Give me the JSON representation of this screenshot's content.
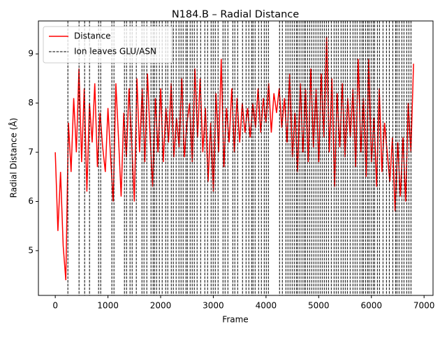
{
  "chart_data": {
    "type": "line",
    "title": "N184.B – Radial Distance",
    "x_label": "Frame",
    "y_label": "Radial Distance (Å)",
    "x": [
      0,
      50,
      100,
      150,
      200,
      250,
      300,
      350,
      400,
      450,
      500,
      550,
      600,
      650,
      700,
      750,
      800,
      850,
      900,
      950,
      1000,
      1050,
      1100,
      1150,
      1200,
      1250,
      1300,
      1350,
      1400,
      1450,
      1500,
      1550,
      1600,
      1650,
      1700,
      1750,
      1800,
      1850,
      1900,
      1950,
      2000,
      2050,
      2100,
      2150,
      2200,
      2250,
      2300,
      2350,
      2400,
      2450,
      2500,
      2550,
      2600,
      2650,
      2700,
      2750,
      2800,
      2850,
      2900,
      2950,
      3000,
      3050,
      3100,
      3150,
      3200,
      3250,
      3300,
      3350,
      3400,
      3450,
      3500,
      3550,
      3600,
      3650,
      3700,
      3750,
      3800,
      3850,
      3900,
      3950,
      4000,
      4050,
      4100,
      4150,
      4200,
      4250,
      4300,
      4350,
      4400,
      4450,
      4500,
      4550,
      4600,
      4650,
      4700,
      4750,
      4800,
      4850,
      4900,
      4950,
      5000,
      5050,
      5100,
      5150,
      5200,
      5250,
      5300,
      5350,
      5400,
      5450,
      5500,
      5550,
      5600,
      5650,
      5700,
      5750,
      5800,
      5850,
      5900,
      5950,
      6000,
      6050,
      6100,
      6150,
      6200,
      6250,
      6300,
      6350,
      6400,
      6450,
      6500,
      6550,
      6600,
      6650,
      6700,
      6750,
      6800
    ],
    "series": [
      {
        "name": "Distance",
        "color": "#ff0000",
        "values": [
          7.0,
          5.4,
          6.6,
          5.1,
          4.4,
          7.6,
          6.6,
          8.1,
          7.0,
          8.7,
          6.8,
          8.3,
          6.2,
          8.0,
          7.2,
          8.4,
          6.7,
          7.8,
          7.1,
          6.6,
          7.9,
          6.9,
          6.0,
          8.4,
          7.3,
          6.1,
          7.8,
          6.9,
          8.3,
          7.2,
          6.0,
          8.5,
          7.0,
          8.3,
          6.8,
          8.6,
          7.3,
          6.3,
          8.1,
          7.0,
          8.3,
          6.8,
          7.9,
          7.2,
          8.4,
          6.9,
          7.7,
          7.1,
          8.5,
          6.9,
          7.6,
          8.0,
          6.8,
          8.7,
          7.3,
          8.5,
          7.0,
          7.9,
          6.4,
          7.6,
          6.2,
          8.2,
          7.0,
          8.9,
          6.7,
          7.9,
          7.2,
          8.3,
          7.0,
          8.1,
          7.2,
          8.0,
          7.4,
          7.9,
          7.3,
          8.0,
          7.5,
          8.3,
          7.4,
          8.1,
          7.6,
          8.4,
          7.4,
          8.2,
          7.8,
          8.3,
          7.5,
          8.1,
          7.2,
          8.6,
          6.9,
          7.8,
          6.6,
          8.4,
          7.0,
          8.3,
          6.8,
          8.7,
          7.1,
          8.3,
          6.8,
          8.6,
          7.3,
          9.35,
          7.0,
          8.5,
          6.3,
          8.2,
          7.1,
          8.4,
          6.9,
          8.1,
          7.3,
          8.3,
          6.7,
          8.9,
          7.0,
          8.1,
          6.5,
          8.9,
          6.8,
          7.7,
          6.3,
          8.3,
          6.6,
          7.6,
          7.0,
          6.4,
          7.3,
          5.8,
          7.2,
          6.1,
          7.3,
          6.0,
          8.0,
          7.0,
          8.8
        ]
      }
    ],
    "vlines": {
      "name": "Ion leaves GLU/ASN",
      "color": "#000000",
      "x": [
        239,
        451,
        557,
        650,
        822,
        862,
        1074,
        1114,
        1313,
        1353,
        1419,
        1459,
        1538,
        1645,
        1684,
        1737,
        1817,
        1857,
        1883,
        1923,
        1976,
        2029,
        2095,
        2135,
        2202,
        2241,
        2294,
        2347,
        2387,
        2427,
        2480,
        2507,
        2560,
        2599,
        2639,
        2692,
        2759,
        2838,
        2891,
        2958,
        2997,
        3037,
        3090,
        3183,
        3223,
        3276,
        3369,
        3408,
        3462,
        3554,
        3621,
        3674,
        3727,
        3753,
        3793,
        3859,
        3912,
        3966,
        4005,
        4045,
        4257,
        4310,
        4377,
        4416,
        4456,
        4496,
        4536,
        4576,
        4602,
        4642,
        4682,
        4721,
        4748,
        4788,
        4828,
        4867,
        4907,
        4947,
        4987,
        5027,
        5066,
        5106,
        5146,
        5186,
        5239,
        5292,
        5332,
        5371,
        5424,
        5464,
        5504,
        5544,
        5597,
        5650,
        5690,
        5729,
        5782,
        5822,
        5849,
        5889,
        5928,
        5955,
        5995,
        6034,
        6061,
        6114,
        6154,
        6220,
        6286,
        6340,
        6406,
        6459,
        6485,
        6525,
        6578,
        6618,
        6671,
        6711,
        6751
      ]
    },
    "xlim": [
      -320,
      7170
    ],
    "ylim": [
      4.09,
      9.67
    ],
    "xticks": [
      0,
      1000,
      2000,
      3000,
      4000,
      5000,
      6000,
      7000
    ],
    "yticks": [
      5,
      6,
      7,
      8,
      9
    ],
    "legend": "upper left"
  }
}
